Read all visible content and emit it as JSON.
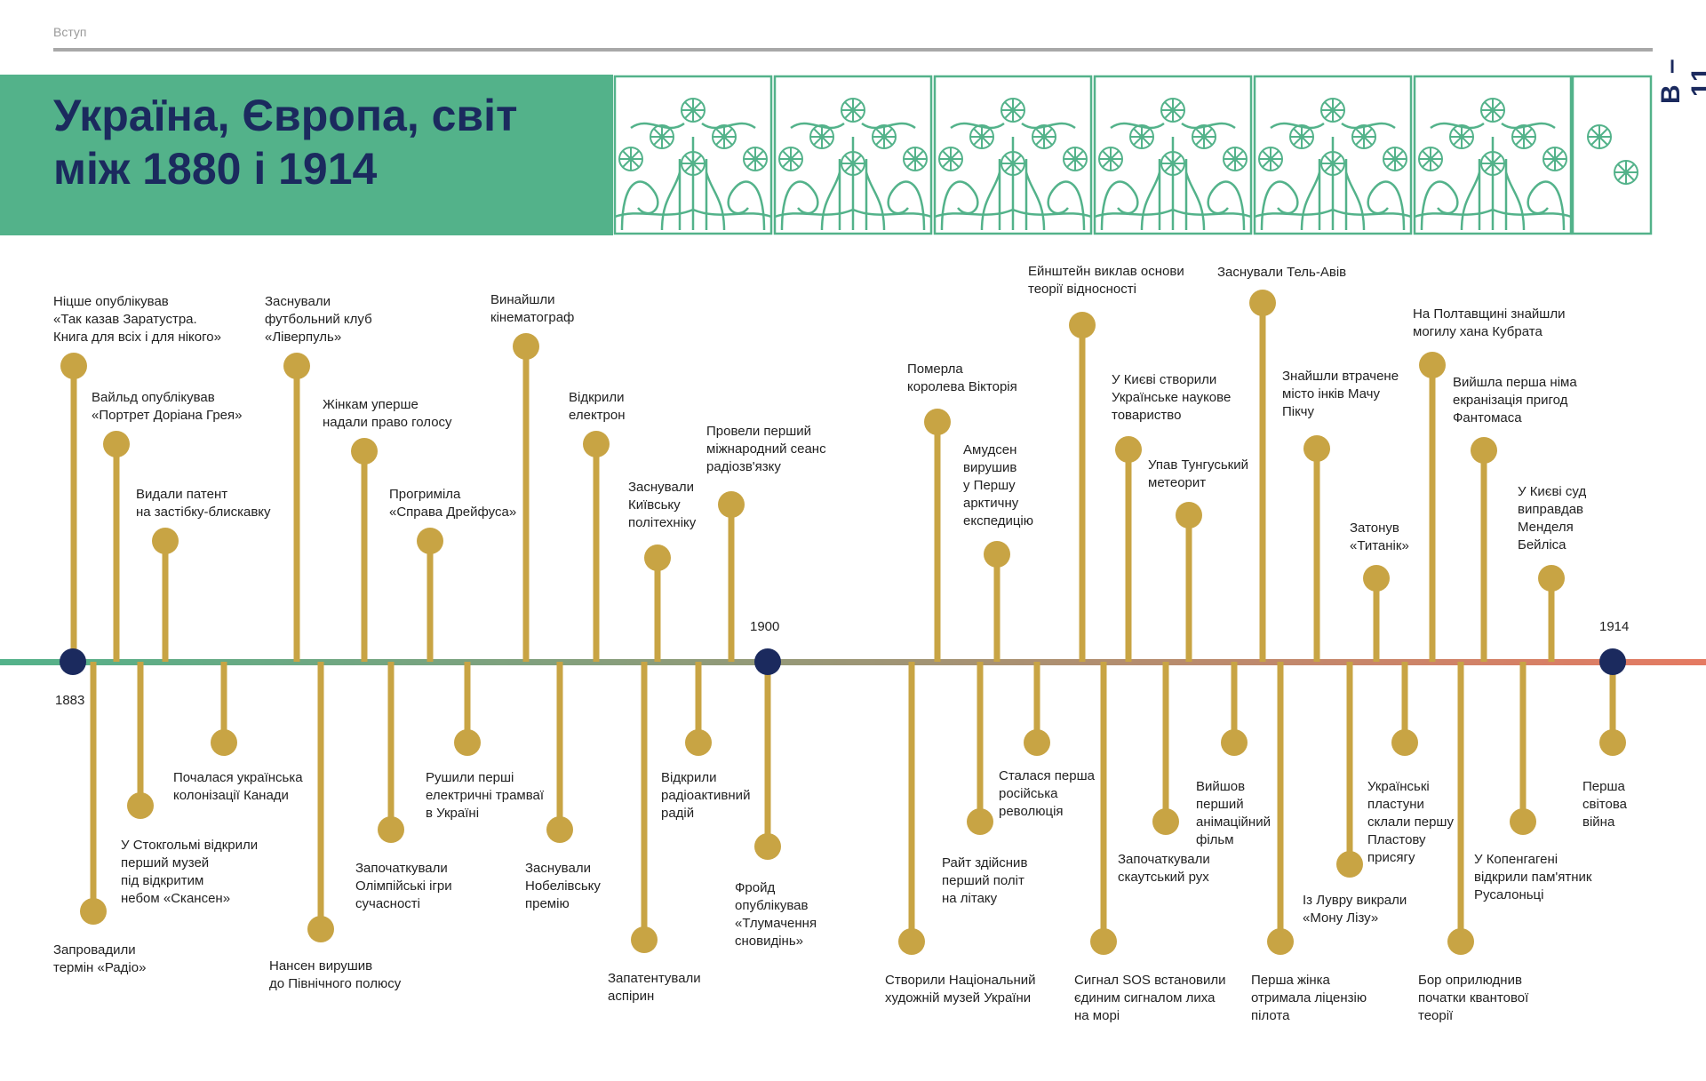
{
  "section": "Вступ",
  "page_number": "В – 11",
  "title": "Україна, Європа, світ\nміж 1880 і 1914",
  "colors": {
    "title_band": "#53b28a",
    "title_text": "#1b2a5e",
    "stem": "#c8a444",
    "node": "#1b2a5e",
    "line_start": "#53b28a",
    "line_end": "#e57a62"
  },
  "years": [
    {
      "text": "1883",
      "side": "below"
    },
    {
      "text": "1900",
      "side": "above"
    },
    {
      "text": "1914",
      "side": "above"
    }
  ],
  "events_above": [
    {
      "text": "Ніцше опублікував\n«Так казав Заратустра.\nКнига для всіх і для нікого»"
    },
    {
      "text": "Вайльд опублікував\n«Портрет Доріана Грея»"
    },
    {
      "text": "Видали патент\nна застібку-блискавку"
    },
    {
      "text": "Заснували\nфутбольний клуб\n«Ліверпуль»"
    },
    {
      "text": "Жінкам уперше\nнадали право голосу"
    },
    {
      "text": "Прогриміла\n«Справа Дрейфуса»"
    },
    {
      "text": "Винайшли\nкінематограф"
    },
    {
      "text": "Відкрили\nелектрон"
    },
    {
      "text": "Заснували\nКиївську\nполітехніку"
    },
    {
      "text": "Провели перший\nміжнародний сеанс\nрадіозв'язку"
    },
    {
      "text": "Померла\nкоролева Вікторія"
    },
    {
      "text": "Амудсен\nвирушив\nу Першу\nарктичну\nекспедицію"
    },
    {
      "text": "Ейнштейн виклав основи\nтеорії відносності"
    },
    {
      "text": "У Києві створили\nУкраїнське наукове\nтовариство"
    },
    {
      "text": "Упав Тунгуський\nметеорит"
    },
    {
      "text": "Заснували Тель-Авів"
    },
    {
      "text": "Знайшли втрачене\nмісто інків Мачу\nПікчу"
    },
    {
      "text": "Затонув\n«Титанік»"
    },
    {
      "text": "На Полтавщині знайшли\nмогилу хана Кубрата"
    },
    {
      "text": "Вийшла перша німа\nекранізація пригод\nФантомаса"
    },
    {
      "text": "У Києві суд\nвиправдав\nМенделя\nБейліса"
    }
  ],
  "events_below": [
    {
      "text": "Запровадили\nтермін «Радіо»"
    },
    {
      "text": "У Стокгольмі відкрили\nперший музей\nпід відкритим\nнебом «Скансен»"
    },
    {
      "text": "Почалася  українська\nколонізації Канади"
    },
    {
      "text": "Нансен вирушив\nдо Північного полюсу"
    },
    {
      "text": "Започаткували\nОлімпійські ігри\nсучасності"
    },
    {
      "text": "Рушили перші\nелектричні трамваї\nв Україні"
    },
    {
      "text": "Заснували\nНобелівську\nпремію"
    },
    {
      "text": "Запатентували\nаспірин"
    },
    {
      "text": "Відкрили\nрадіоактивний\nрадій"
    },
    {
      "text": "Фройд\nопублікував\n«Тлумачення\nсновидінь»"
    },
    {
      "text": "Створили Національний\nхудожній музей України"
    },
    {
      "text": "Райт здійснив\nперший політ\nна літаку"
    },
    {
      "text": "Сталася перша\nросійська\nреволюція"
    },
    {
      "text": "Сигнал SOS встановили\nєдиним сигналом лиха\nна морі"
    },
    {
      "text": "Започаткували\nскаутський рух"
    },
    {
      "text": "Вийшов\nперший\nанімаційний\nфільм"
    },
    {
      "text": "Перша жінка\nотримала ліцензію\nпілота"
    },
    {
      "text": "Із Лувру викрали\n«Мону Лізу»"
    },
    {
      "text": "Українські\nпластуни\nсклали першу\nПластову\nприсягу"
    },
    {
      "text": "Бор оприлюднив\nпочатки квантової\nтеорії"
    },
    {
      "text": "У Копенгагені\nвідкрили пам'ятник\nРусалоньці"
    },
    {
      "text": "Перша\nсвітова\nвійна"
    }
  ]
}
